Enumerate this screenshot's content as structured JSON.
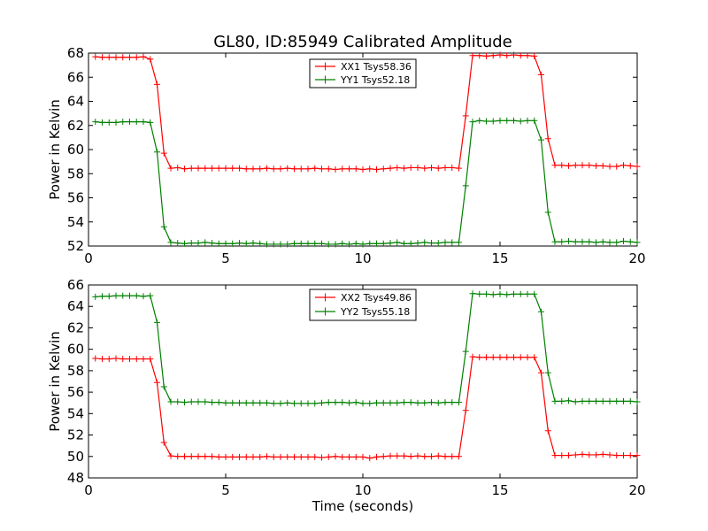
{
  "figure": {
    "title": "GL80, ID:85949 Calibrated Amplitude"
  },
  "colors": {
    "xx": "#ff0000",
    "yy": "#008000"
  },
  "chart_data": [
    {
      "type": "line",
      "title": "GL80, ID:85949 Calibrated Amplitude",
      "xlabel": "",
      "ylabel": "Power in Kelvin",
      "xlim": [
        0,
        20
      ],
      "ylim": [
        52,
        68
      ],
      "xticks": [
        "0",
        "5",
        "10",
        "15",
        "20"
      ],
      "yticks": [
        "52",
        "54",
        "56",
        "58",
        "60",
        "62",
        "64",
        "66",
        "68"
      ],
      "legend_position": "top-center",
      "grid": false,
      "x": [
        0.25,
        0.5,
        0.75,
        1.0,
        1.25,
        1.5,
        1.75,
        2.0,
        2.25,
        2.5,
        2.75,
        3.0,
        3.25,
        3.5,
        3.75,
        4.0,
        4.25,
        4.5,
        4.75,
        5.0,
        5.25,
        5.5,
        5.75,
        6.0,
        6.25,
        6.5,
        6.75,
        7.0,
        7.25,
        7.5,
        7.75,
        8.0,
        8.25,
        8.5,
        8.75,
        9.0,
        9.25,
        9.5,
        9.75,
        10.0,
        10.25,
        10.5,
        10.75,
        11.0,
        11.25,
        11.5,
        11.75,
        12.0,
        12.25,
        12.5,
        12.75,
        13.0,
        13.25,
        13.5,
        13.75,
        14.0,
        14.25,
        14.5,
        14.75,
        15.0,
        15.25,
        15.5,
        15.75,
        16.0,
        16.25,
        16.5,
        16.75,
        17.0,
        17.25,
        17.5,
        17.75,
        18.0,
        18.25,
        18.5,
        18.75,
        19.0,
        19.25,
        19.5,
        19.75,
        20.0
      ],
      "series": [
        {
          "name": "XX1 Tsys58.36",
          "color": "#ff0000",
          "values": [
            67.7,
            67.65,
            67.65,
            67.65,
            67.65,
            67.65,
            67.65,
            67.7,
            67.5,
            65.4,
            59.7,
            58.45,
            58.5,
            58.4,
            58.45,
            58.45,
            58.45,
            58.45,
            58.45,
            58.45,
            58.45,
            58.45,
            58.4,
            58.4,
            58.4,
            58.45,
            58.4,
            58.4,
            58.45,
            58.4,
            58.4,
            58.4,
            58.45,
            58.4,
            58.4,
            58.35,
            58.4,
            58.4,
            58.4,
            58.35,
            58.4,
            58.35,
            58.4,
            58.45,
            58.5,
            58.45,
            58.5,
            58.5,
            58.45,
            58.5,
            58.45,
            58.5,
            58.5,
            58.45,
            62.8,
            67.8,
            67.8,
            67.75,
            67.8,
            67.85,
            67.8,
            67.85,
            67.8,
            67.8,
            67.75,
            66.2,
            60.9,
            58.7,
            58.7,
            58.65,
            58.7,
            58.7,
            58.7,
            58.65,
            58.65,
            58.6,
            58.6,
            58.7,
            58.65,
            58.6
          ]
        },
        {
          "name": "YY1 Tsys52.18",
          "color": "#008000",
          "values": [
            62.3,
            62.25,
            62.25,
            62.25,
            62.3,
            62.3,
            62.3,
            62.3,
            62.25,
            59.8,
            53.6,
            52.3,
            52.25,
            52.2,
            52.25,
            52.25,
            52.3,
            52.25,
            52.2,
            52.2,
            52.2,
            52.25,
            52.2,
            52.25,
            52.2,
            52.15,
            52.15,
            52.15,
            52.15,
            52.2,
            52.2,
            52.2,
            52.2,
            52.2,
            52.15,
            52.15,
            52.2,
            52.15,
            52.2,
            52.15,
            52.2,
            52.2,
            52.2,
            52.25,
            52.3,
            52.2,
            52.2,
            52.25,
            52.3,
            52.25,
            52.25,
            52.3,
            52.3,
            52.3,
            57.0,
            62.3,
            62.4,
            62.35,
            62.35,
            62.4,
            62.4,
            62.4,
            62.35,
            62.4,
            62.4,
            60.8,
            54.8,
            52.35,
            52.35,
            52.4,
            52.35,
            52.35,
            52.35,
            52.3,
            52.35,
            52.3,
            52.3,
            52.4,
            52.35,
            52.3
          ]
        }
      ]
    },
    {
      "type": "line",
      "title": "",
      "xlabel": "Time (seconds)",
      "ylabel": "Power in Kelvin",
      "xlim": [
        0,
        20
      ],
      "ylim": [
        48,
        66
      ],
      "xticks": [
        "0",
        "5",
        "10",
        "15",
        "20"
      ],
      "yticks": [
        "48",
        "50",
        "52",
        "54",
        "56",
        "58",
        "60",
        "62",
        "64",
        "66"
      ],
      "legend_position": "top-center",
      "grid": false,
      "x": [
        0.25,
        0.5,
        0.75,
        1.0,
        1.25,
        1.5,
        1.75,
        2.0,
        2.25,
        2.5,
        2.75,
        3.0,
        3.25,
        3.5,
        3.75,
        4.0,
        4.25,
        4.5,
        4.75,
        5.0,
        5.25,
        5.5,
        5.75,
        6.0,
        6.25,
        6.5,
        6.75,
        7.0,
        7.25,
        7.5,
        7.75,
        8.0,
        8.25,
        8.5,
        8.75,
        9.0,
        9.25,
        9.5,
        9.75,
        10.0,
        10.25,
        10.5,
        10.75,
        11.0,
        11.25,
        11.5,
        11.75,
        12.0,
        12.25,
        12.5,
        12.75,
        13.0,
        13.25,
        13.5,
        13.75,
        14.0,
        14.25,
        14.5,
        14.75,
        15.0,
        15.25,
        15.5,
        15.75,
        16.0,
        16.25,
        16.5,
        16.75,
        17.0,
        17.25,
        17.5,
        17.75,
        18.0,
        18.25,
        18.5,
        18.75,
        19.0,
        19.25,
        19.5,
        19.75,
        20.0
      ],
      "series": [
        {
          "name": "XX2 Tsys49.86",
          "color": "#ff0000",
          "values": [
            59.15,
            59.1,
            59.1,
            59.15,
            59.1,
            59.1,
            59.1,
            59.1,
            59.1,
            56.9,
            51.3,
            50.05,
            50.0,
            50.0,
            50.0,
            50.0,
            50.0,
            50.0,
            49.95,
            49.95,
            49.95,
            49.95,
            49.95,
            49.95,
            49.95,
            50.0,
            49.95,
            49.95,
            49.95,
            49.95,
            49.95,
            49.95,
            49.95,
            49.9,
            49.95,
            50.0,
            49.95,
            49.95,
            49.95,
            49.95,
            49.85,
            49.95,
            50.0,
            50.05,
            50.05,
            50.05,
            50.0,
            50.05,
            50.0,
            50.0,
            50.05,
            50.0,
            50.0,
            50.0,
            54.3,
            59.3,
            59.25,
            59.25,
            59.25,
            59.25,
            59.25,
            59.25,
            59.25,
            59.25,
            59.25,
            57.8,
            52.4,
            50.1,
            50.1,
            50.1,
            50.15,
            50.2,
            50.15,
            50.15,
            50.2,
            50.15,
            50.1,
            50.1,
            50.1,
            50.1
          ]
        },
        {
          "name": "YY2 Tsys55.18",
          "color": "#008000",
          "values": [
            64.9,
            64.95,
            64.95,
            65.0,
            65.0,
            65.0,
            65.0,
            64.95,
            65.0,
            62.5,
            56.5,
            55.1,
            55.1,
            55.05,
            55.1,
            55.1,
            55.1,
            55.05,
            55.05,
            55.0,
            55.0,
            55.0,
            55.0,
            55.0,
            55.0,
            55.0,
            54.95,
            54.95,
            55.0,
            54.95,
            54.95,
            54.95,
            54.95,
            55.0,
            55.05,
            55.05,
            55.05,
            55.0,
            55.05,
            54.95,
            54.95,
            55.0,
            55.0,
            55.0,
            55.0,
            55.05,
            55.05,
            55.0,
            55.0,
            55.05,
            55.0,
            55.05,
            55.05,
            55.05,
            59.8,
            65.2,
            65.15,
            65.15,
            65.1,
            65.15,
            65.1,
            65.15,
            65.15,
            65.15,
            65.15,
            63.5,
            57.8,
            55.15,
            55.15,
            55.2,
            55.1,
            55.15,
            55.15,
            55.15,
            55.15,
            55.15,
            55.15,
            55.15,
            55.15,
            55.1
          ]
        }
      ]
    }
  ]
}
